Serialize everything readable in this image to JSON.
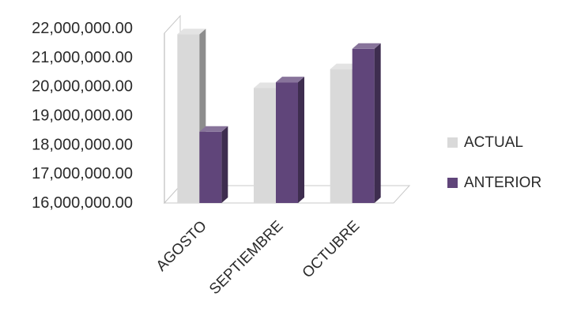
{
  "chart_data": {
    "type": "bar",
    "style": "3d-clustered-column",
    "categories": [
      "AGOSTO",
      "SEPTIEMBRE",
      "OCTUBRE"
    ],
    "series": [
      {
        "name": "ACTUAL",
        "color": "#d9d9d9",
        "values": [
          21800000,
          19950000,
          20600000
        ]
      },
      {
        "name": "ANTERIOR",
        "color": "#60457a",
        "values": [
          18450000,
          20150000,
          21300000
        ]
      }
    ],
    "yticks": [
      "16,000,000.00",
      "17,000,000.00",
      "18,000,000.00",
      "19,000,000.00",
      "20,000,000.00",
      "21,000,000.00",
      "22,000,000.00"
    ],
    "ylim": [
      16000000,
      22000000
    ],
    "grid": false,
    "legend_position": "right"
  }
}
